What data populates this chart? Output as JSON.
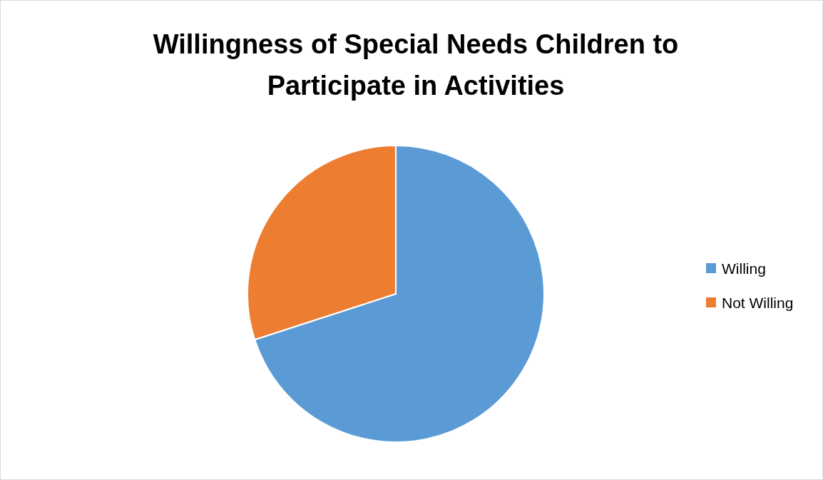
{
  "chart_data": {
    "type": "pie",
    "title": "Willingness of Special Needs Children to Participate in Activities",
    "categories": [
      "Willing",
      "Not Willing"
    ],
    "values": [
      70,
      30
    ],
    "colors": [
      "#5b9bd5",
      "#ed7d31"
    ],
    "legend": "right"
  }
}
